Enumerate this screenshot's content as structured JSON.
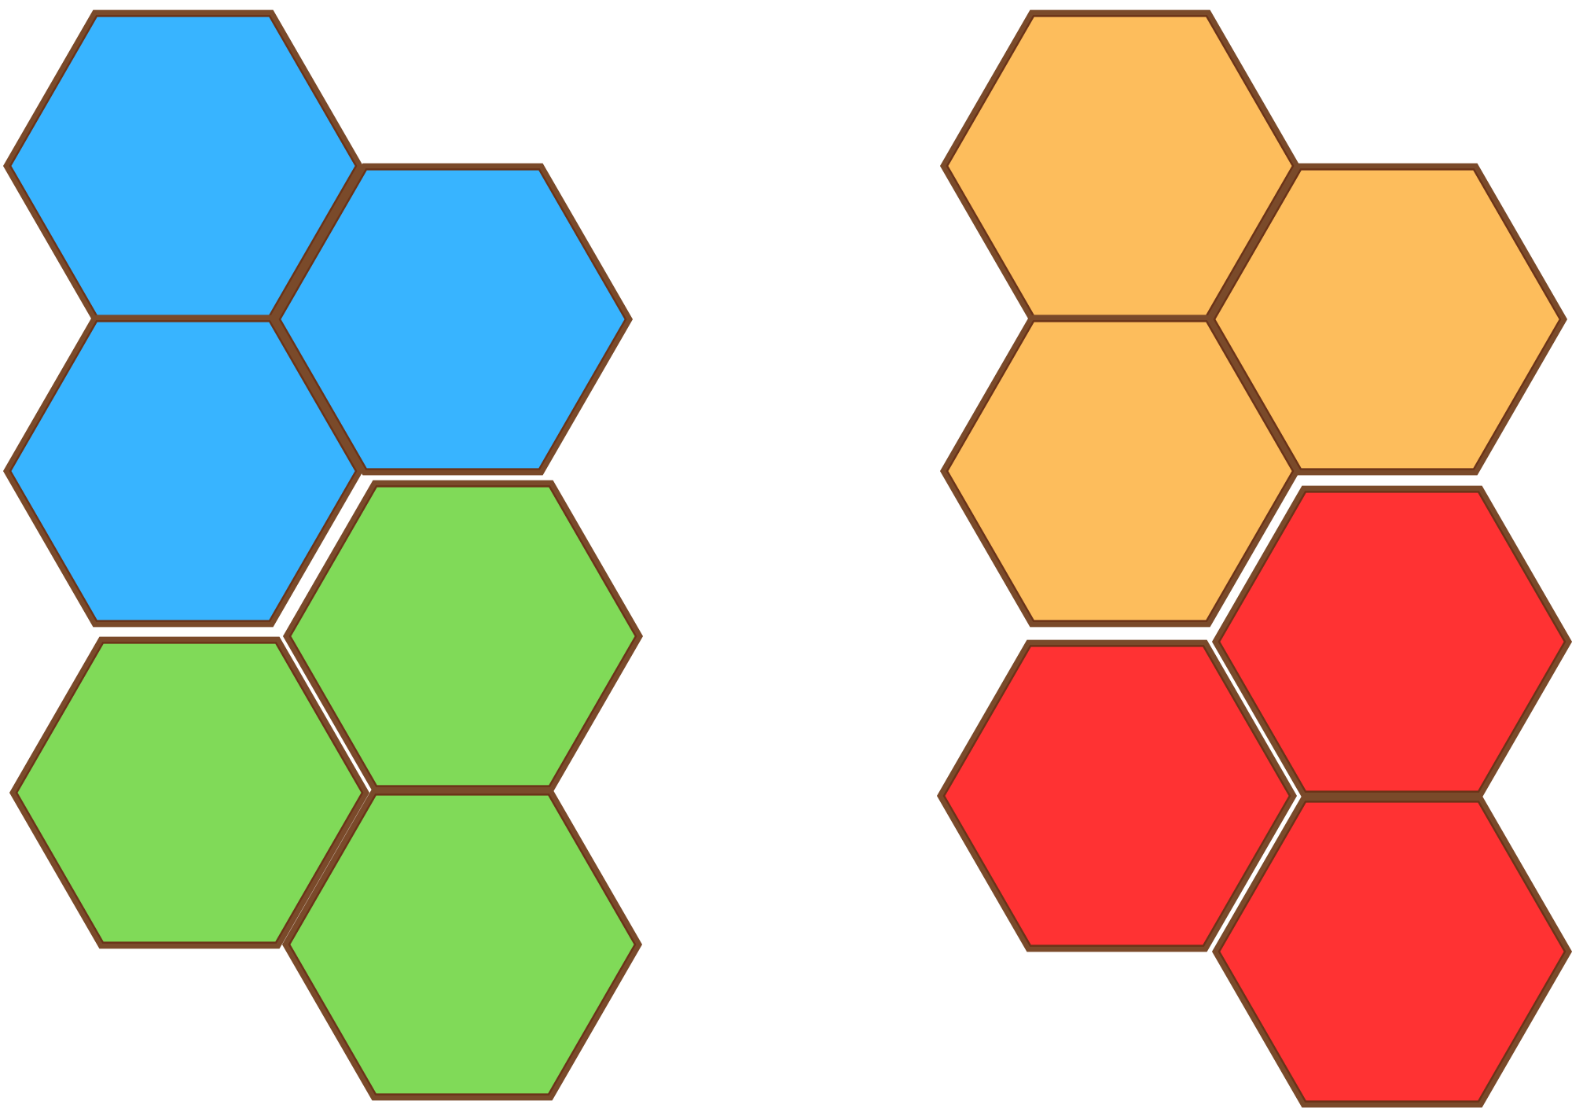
{
  "palette": {
    "blue": "#38b4ff",
    "green": "#80da58",
    "orange": "#fdbd5c",
    "red": "#ff3233",
    "outline": "#7a4a2a"
  },
  "pieces": [
    {
      "name": "blue-piece",
      "color": "blue",
      "tiles": 3
    },
    {
      "name": "green-piece",
      "color": "green",
      "tiles": 3
    },
    {
      "name": "orange-piece",
      "color": "orange",
      "tiles": 3
    },
    {
      "name": "red-piece",
      "color": "red",
      "tiles": 3
    }
  ]
}
